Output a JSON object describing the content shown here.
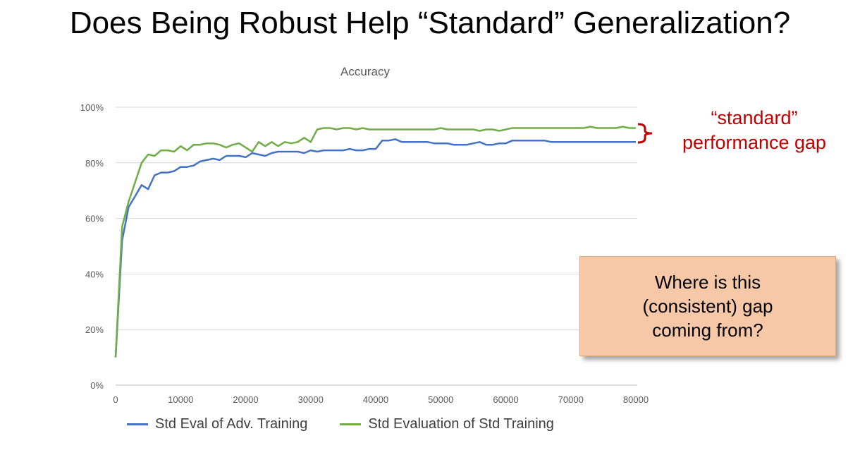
{
  "slide": {
    "title": "Does Being Robust Help “Standard” Generalization?",
    "annotation": "“standard”\nperformance gap",
    "callout": "Where is this\n(consistent) gap\ncoming from?"
  },
  "colors": {
    "adv_series": "#4472c4",
    "std_series": "#70ad47",
    "annotation": "#c00000",
    "callout_bg": "#f7c8a8",
    "grid": "#d9d9d9"
  },
  "chart_data": {
    "type": "line",
    "title": "Accuracy",
    "xlabel": "",
    "ylabel": "",
    "xlim": [
      0,
      80000
    ],
    "ylim": [
      0,
      100
    ],
    "x_ticks": [
      "0",
      "10000",
      "20000",
      "30000",
      "40000",
      "50000",
      "60000",
      "70000",
      "80000"
    ],
    "y_ticks": [
      "0%",
      "20%",
      "40%",
      "60%",
      "80%",
      "100%"
    ],
    "grid": true,
    "legend_position": "bottom",
    "series": [
      {
        "name": "Std Eval of Adv. Training",
        "color": "#4472c4",
        "x": [
          0,
          1000,
          2000,
          3000,
          4000,
          5000,
          6000,
          7000,
          8000,
          9000,
          10000,
          11000,
          12000,
          13000,
          14000,
          15000,
          16000,
          17000,
          18000,
          19000,
          20000,
          21000,
          22000,
          23000,
          24000,
          25000,
          26000,
          27000,
          28000,
          29000,
          30000,
          31000,
          32000,
          33000,
          34000,
          35000,
          36000,
          37000,
          38000,
          39000,
          40000,
          41000,
          42000,
          43000,
          44000,
          45000,
          46000,
          47000,
          48000,
          49000,
          50000,
          51000,
          52000,
          53000,
          54000,
          55000,
          56000,
          57000,
          58000,
          59000,
          60000,
          61000,
          62000,
          63000,
          64000,
          65000,
          66000,
          67000,
          68000,
          69000,
          70000,
          71000,
          72000,
          73000,
          74000,
          75000,
          76000,
          77000,
          78000,
          79000,
          80000
        ],
        "y": [
          10,
          52,
          64,
          68,
          72,
          70.5,
          75.5,
          76.5,
          76.5,
          77,
          78.5,
          78.5,
          79,
          80.5,
          81,
          81.5,
          81,
          82.5,
          82.5,
          82.5,
          82,
          83.5,
          83,
          82.5,
          83.5,
          84,
          84,
          84,
          84,
          83.5,
          84.5,
          84,
          84.5,
          84.5,
          84.5,
          84.5,
          85,
          84.5,
          84.5,
          85,
          85,
          88,
          88,
          88.5,
          87.5,
          87.5,
          87.5,
          87.5,
          87.5,
          87,
          87,
          87,
          86.5,
          86.5,
          86.5,
          87,
          87.5,
          86.5,
          86.5,
          87,
          87,
          88,
          88,
          88,
          88,
          88,
          88,
          87.5,
          87.5,
          87.5,
          87.5,
          87.5,
          87.5,
          87.5,
          87.5,
          87.5,
          87.5,
          87.5,
          87.5,
          87.5,
          87.5
        ]
      },
      {
        "name": "Std Evaluation of Std Training",
        "color": "#70ad47",
        "x": [
          0,
          1000,
          2000,
          3000,
          4000,
          5000,
          6000,
          7000,
          8000,
          9000,
          10000,
          11000,
          12000,
          13000,
          14000,
          15000,
          16000,
          17000,
          18000,
          19000,
          20000,
          21000,
          22000,
          23000,
          24000,
          25000,
          26000,
          27000,
          28000,
          29000,
          30000,
          31000,
          32000,
          33000,
          34000,
          35000,
          36000,
          37000,
          38000,
          39000,
          40000,
          41000,
          42000,
          43000,
          44000,
          45000,
          46000,
          47000,
          48000,
          49000,
          50000,
          51000,
          52000,
          53000,
          54000,
          55000,
          56000,
          57000,
          58000,
          59000,
          60000,
          61000,
          62000,
          63000,
          64000,
          65000,
          66000,
          67000,
          68000,
          69000,
          70000,
          71000,
          72000,
          73000,
          74000,
          75000,
          76000,
          77000,
          78000,
          79000,
          80000
        ],
        "y": [
          10,
          57,
          66,
          73,
          80,
          83,
          82.5,
          84.5,
          84.5,
          84,
          86,
          84.5,
          86.5,
          86.5,
          87,
          87,
          86.5,
          85.5,
          86.5,
          87,
          85.5,
          84,
          87.5,
          86,
          87.5,
          86,
          87.5,
          87,
          87.5,
          89,
          87.5,
          92,
          92.5,
          92.5,
          92,
          92.5,
          92.5,
          92,
          92.5,
          92,
          92,
          92,
          92,
          92,
          92,
          92,
          92,
          92,
          92,
          92,
          92.5,
          92,
          92,
          92,
          92,
          92,
          91.5,
          92,
          92,
          91.5,
          92,
          92.5,
          92.5,
          92.5,
          92.5,
          92.5,
          92.5,
          92.5,
          92.5,
          92.5,
          92.5,
          92.5,
          92.5,
          93,
          92.5,
          92.5,
          92.5,
          92.5,
          93,
          92.5,
          92.5
        ]
      }
    ]
  }
}
